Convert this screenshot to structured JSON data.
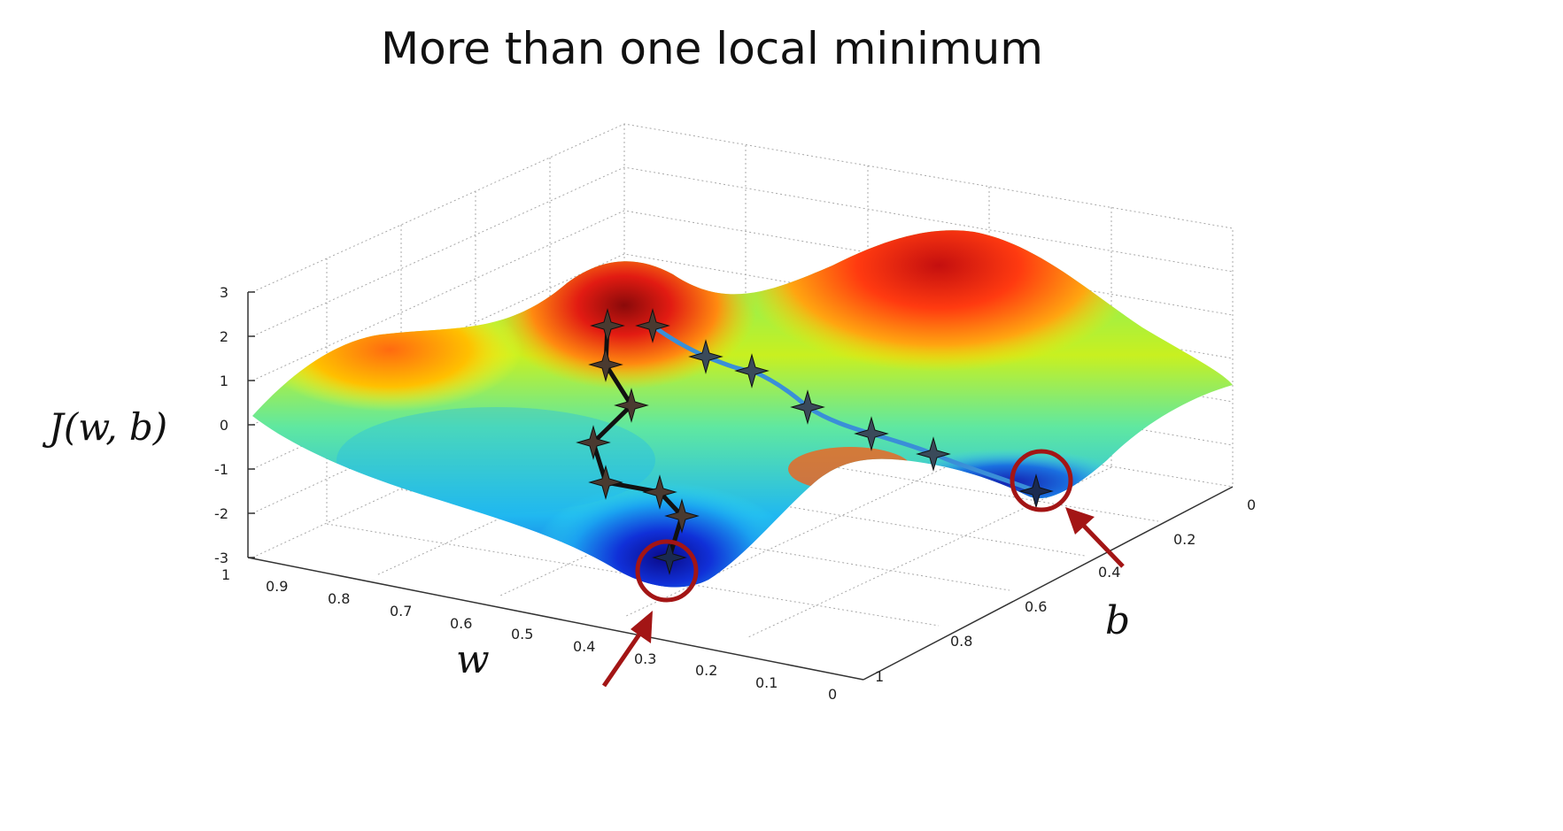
{
  "title": "More than one local minimum",
  "axes": {
    "z_label": "J(w, b)",
    "w_label": "w",
    "b_label": "b",
    "z_ticks": [
      "3",
      "2",
      "1",
      "0",
      "-1",
      "-2",
      "-3"
    ],
    "w_ticks": [
      "1",
      "0.9",
      "0.8",
      "0.7",
      "0.6",
      "0.5",
      "0.4",
      "0.3",
      "0.2",
      "0.1",
      "0"
    ],
    "b_ticks": [
      "0",
      "0.2",
      "0.4",
      "0.6",
      "0.8",
      "1"
    ]
  },
  "colors": {
    "black_path": "#111111",
    "blue_path": "#3a8fd8",
    "star_fill": "#4a3a30",
    "minimum_marker": "#a31515",
    "arrow": "#a31515"
  },
  "descent_paths": [
    {
      "name": "black-path",
      "steps": 9
    },
    {
      "name": "blue-path",
      "steps": 8
    }
  ],
  "local_minima_marked": 2
}
